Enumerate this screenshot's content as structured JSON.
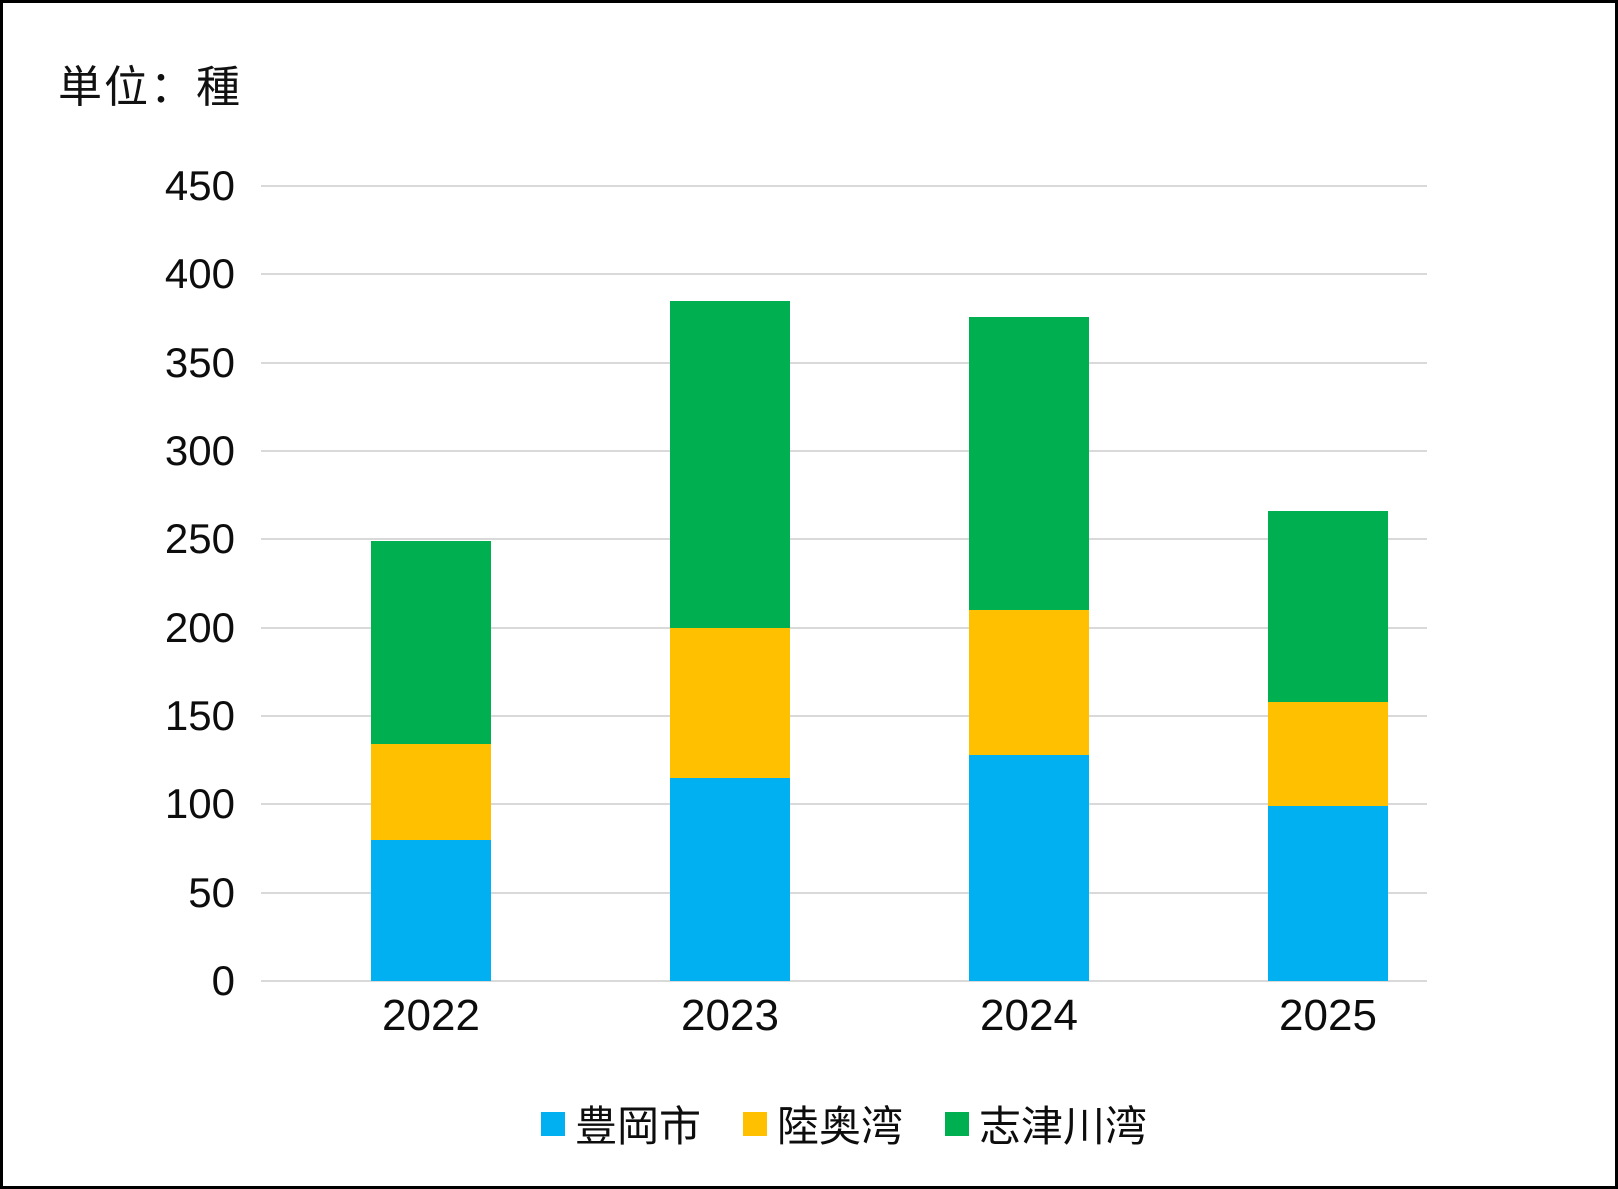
{
  "unit_label": "単位：種",
  "chart_data": {
    "type": "bar",
    "stacked": true,
    "title": "単位：種",
    "xlabel": "",
    "ylabel": "",
    "categories": [
      "2022",
      "2023",
      "2024",
      "2025"
    ],
    "series": [
      {
        "name": "豊岡市",
        "color": "#00B0F0",
        "values": [
          80,
          115,
          128,
          99
        ]
      },
      {
        "name": "陸奥湾",
        "color": "#FFC000",
        "values": [
          54,
          85,
          82,
          59
        ]
      },
      {
        "name": "志津川湾",
        "color": "#00B050",
        "values": [
          115,
          185,
          166,
          108
        ]
      }
    ],
    "totals": [
      249,
      385,
      376,
      266
    ],
    "ylim": [
      0,
      450
    ],
    "yticks": [
      0,
      50,
      100,
      150,
      200,
      250,
      300,
      350,
      400,
      450
    ],
    "grid": true,
    "gridline_color": "#D9D9D9",
    "legend_position": "bottom"
  },
  "colors": {
    "background": "#FFFFFF",
    "border": "#000000",
    "text": "#0d0d0d"
  }
}
